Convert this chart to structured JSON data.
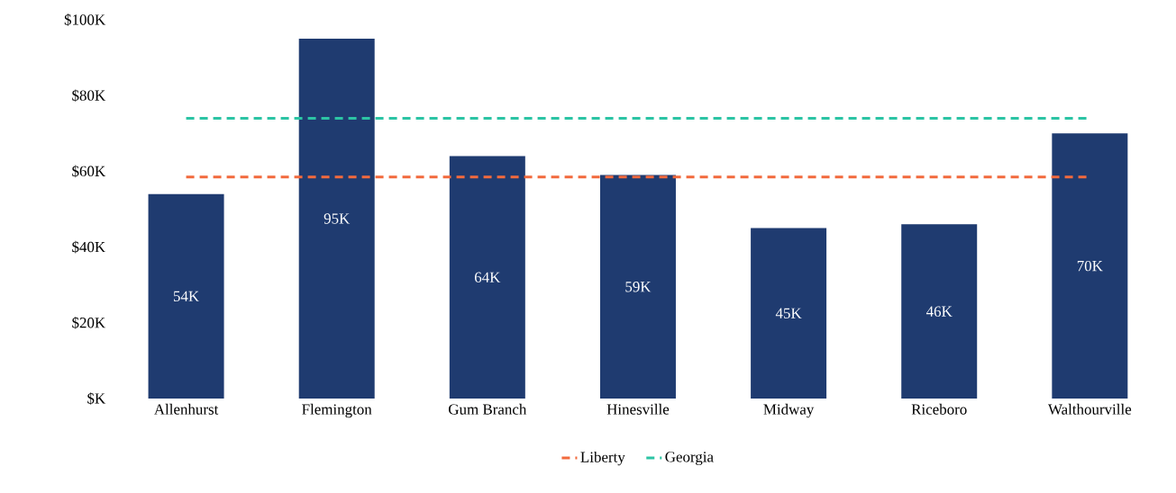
{
  "chart_data": {
    "type": "bar",
    "categories": [
      "Allenhurst",
      "Flemington",
      "Gum Branch",
      "Hinesville",
      "Midway",
      "Riceboro",
      "Walthourville"
    ],
    "series": [
      {
        "color": "#1f3b70",
        "values": [
          54,
          95,
          64,
          59,
          45,
          46,
          70
        ],
        "value_labels": [
          "54K",
          "95K",
          "64K",
          "59K",
          "45K",
          "46K",
          "70K"
        ]
      },
      {
        "type": "line",
        "name": "Liberty",
        "color": "#f26a3d",
        "line_style": "dashed",
        "values": [
          58.5,
          58.5,
          58.5,
          58.5,
          58.5,
          58.5,
          58.5
        ]
      },
      {
        "type": "line",
        "name": "Georgia",
        "color": "#2cc4a4",
        "line_style": "dashed",
        "values": [
          74,
          74,
          74,
          74,
          74,
          74,
          74
        ]
      }
    ],
    "ylim": [
      0,
      100
    ],
    "yticks": [
      {
        "value": 0,
        "label": "$K"
      },
      {
        "value": 20,
        "label": "$20K"
      },
      {
        "value": 40,
        "label": "$40K"
      },
      {
        "value": 60,
        "label": "$60K"
      },
      {
        "value": 80,
        "label": "$80K"
      },
      {
        "value": 100,
        "label": "$100K"
      }
    ],
    "marker": "none",
    "legend": "bottom"
  }
}
